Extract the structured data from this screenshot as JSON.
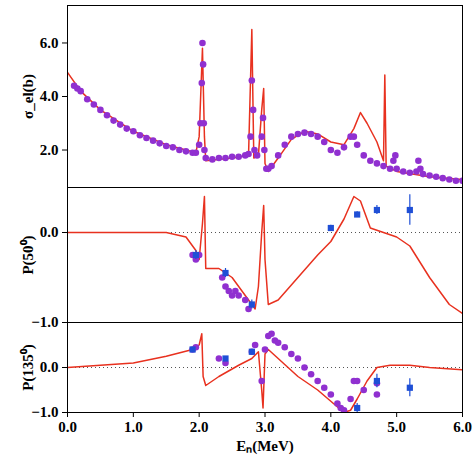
{
  "chart_data": [
    {
      "type": "line",
      "ylabel": "σ_el(b)",
      "tick_labels": "y",
      "xlim": [
        0,
        6
      ],
      "xticks": [
        0,
        1,
        2,
        3,
        4,
        5,
        6
      ],
      "ylim": [
        0.6,
        7.4
      ],
      "yticks": [
        2,
        4,
        6
      ],
      "series": [
        {
          "type": "line",
          "color": "#e8311f",
          "x": [
            0,
            0.2,
            0.5,
            1.0,
            1.5,
            1.8,
            1.95,
            2.0,
            2.05,
            2.08,
            2.1,
            2.5,
            2.75,
            2.8,
            2.83,
            2.9,
            2.95,
            2.98,
            3.0,
            3.05,
            3.2,
            3.4,
            3.6,
            3.8,
            4.0,
            4.2,
            4.35,
            4.45,
            4.55,
            4.7,
            4.8,
            4.82,
            4.84,
            5.0,
            5.5,
            6.0
          ],
          "values": [
            4.9,
            4.2,
            3.5,
            2.7,
            2.2,
            2.0,
            1.9,
            2.5,
            5.8,
            2.5,
            1.6,
            1.7,
            1.8,
            6.5,
            1.7,
            1.8,
            3.5,
            4.3,
            1.5,
            1.2,
            1.7,
            2.4,
            2.7,
            2.6,
            2.3,
            2.2,
            2.8,
            3.4,
            3.0,
            2.3,
            1.6,
            4.8,
            1.4,
            1.2,
            1.0,
            0.9
          ]
        },
        {
          "type": "scatter",
          "marker": "circle",
          "color": "#9030d0",
          "x": [
            0.1,
            0.15,
            0.2,
            0.3,
            0.4,
            0.5,
            0.6,
            0.7,
            0.8,
            0.9,
            1.0,
            1.1,
            1.2,
            1.3,
            1.4,
            1.5,
            1.6,
            1.7,
            1.8,
            1.9,
            1.95,
            2.0,
            2.02,
            2.04,
            2.05,
            2.06,
            2.07,
            2.08,
            2.1,
            2.2,
            2.3,
            2.4,
            2.5,
            2.6,
            2.7,
            2.75,
            2.78,
            2.8,
            2.82,
            2.84,
            2.88,
            2.95,
            2.97,
            2.99,
            3.02,
            3.05,
            3.1,
            3.2,
            3.3,
            3.4,
            3.5,
            3.6,
            3.7,
            3.8,
            3.9,
            4.0,
            4.1,
            4.2,
            4.3,
            4.35,
            4.4,
            4.5,
            4.6,
            4.7,
            4.8,
            4.9,
            4.95,
            4.98,
            5.0,
            5.1,
            5.2,
            5.3,
            5.33,
            5.36,
            5.4,
            5.5,
            5.6,
            5.7,
            5.8,
            5.9,
            6.0
          ],
          "values": [
            4.4,
            4.3,
            4.2,
            3.9,
            3.7,
            3.5,
            3.3,
            3.1,
            2.95,
            2.8,
            2.7,
            2.55,
            2.45,
            2.35,
            2.25,
            2.15,
            2.1,
            2.0,
            1.95,
            1.9,
            1.9,
            2.2,
            3.0,
            4.5,
            6.0,
            5.2,
            3.0,
            2.0,
            1.7,
            1.65,
            1.7,
            1.7,
            1.75,
            1.75,
            1.8,
            1.85,
            2.5,
            4.6,
            3.5,
            2.0,
            1.8,
            2.5,
            3.2,
            2.0,
            1.3,
            1.3,
            1.4,
            1.8,
            2.2,
            2.5,
            2.6,
            2.65,
            2.6,
            2.5,
            2.3,
            2.0,
            1.9,
            2.1,
            2.5,
            2.5,
            2.2,
            1.8,
            1.6,
            1.5,
            1.4,
            1.3,
            1.6,
            1.8,
            1.3,
            1.2,
            1.15,
            1.2,
            1.6,
            1.3,
            1.1,
            1.05,
            1.0,
            0.95,
            0.9,
            0.85,
            0.85
          ]
        }
      ]
    },
    {
      "type": "line",
      "ylabel": "P(50⁰)",
      "tick_labels": "y",
      "grid": true,
      "xlim": [
        0,
        6
      ],
      "xticks": [
        0,
        1,
        2,
        3,
        4,
        5,
        6
      ],
      "ylim": [
        -1,
        0.5
      ],
      "yticks": [
        -1,
        0
      ],
      "series": [
        {
          "type": "line",
          "color": "#e8311f",
          "x": [
            0,
            1.5,
            1.8,
            1.95,
            2.0,
            2.05,
            2.08,
            2.1,
            2.3,
            2.5,
            2.7,
            2.85,
            2.9,
            2.95,
            2.98,
            3.0,
            3.05,
            3.2,
            3.5,
            3.8,
            4.0,
            4.2,
            4.35,
            4.45,
            4.6,
            4.8,
            5.0,
            5.2,
            5.5,
            5.8,
            6.0
          ],
          "values": [
            0,
            0,
            -0.05,
            -0.2,
            -0.3,
            0.1,
            0.4,
            -0.4,
            -0.4,
            -0.5,
            -0.7,
            -0.85,
            -0.6,
            0.0,
            0.3,
            -0.3,
            -0.8,
            -0.75,
            -0.5,
            -0.25,
            -0.1,
            0.15,
            0.4,
            0.35,
            0.05,
            0.0,
            -0.05,
            -0.15,
            -0.5,
            -0.8,
            -0.9
          ]
        },
        {
          "type": "scatter",
          "marker": "circle",
          "color": "#9030d0",
          "x": [
            1.9,
            1.95,
            2.0,
            2.35,
            2.4,
            2.45,
            2.5,
            2.55,
            2.6,
            2.7,
            2.75
          ],
          "values": [
            -0.25,
            -0.3,
            -0.25,
            -0.5,
            -0.6,
            -0.65,
            -0.7,
            -0.65,
            -0.7,
            -0.75,
            -0.85
          ]
        },
        {
          "type": "scatter",
          "marker": "square",
          "color": "#1f4fd6",
          "x": [
            1.95,
            2.4,
            2.8,
            4.0,
            4.4,
            4.7,
            5.2
          ],
          "values": [
            -0.25,
            -0.45,
            -0.8,
            0.05,
            0.2,
            0.25,
            0.25
          ],
          "errors": [
            0.05,
            0.05,
            0.05,
            0.03,
            0.03,
            0.05,
            0.17
          ]
        }
      ]
    },
    {
      "type": "line",
      "ylabel": "P(135⁰)",
      "xlabel": "Eₙ(MeV)",
      "grid": true,
      "xlim": [
        0,
        6
      ],
      "xticks": [
        0,
        1,
        2,
        3,
        4,
        5,
        6
      ],
      "ylim": [
        -1,
        1
      ],
      "yticks": [
        -1,
        0
      ],
      "series": [
        {
          "type": "line",
          "color": "#e8311f",
          "x": [
            0,
            1.0,
            1.5,
            1.9,
            2.0,
            2.04,
            2.06,
            2.1,
            2.3,
            2.6,
            2.8,
            2.9,
            2.95,
            2.97,
            3.0,
            3.05,
            3.2,
            3.5,
            3.8,
            4.0,
            4.2,
            4.3,
            4.4,
            4.55,
            4.7,
            4.9,
            5.2,
            5.5,
            6.0
          ],
          "values": [
            0,
            0.1,
            0.25,
            0.4,
            0.5,
            0.75,
            -0.2,
            -0.4,
            -0.2,
            0.05,
            0.2,
            0.35,
            -0.5,
            -0.9,
            0.3,
            0.4,
            0.2,
            -0.2,
            -0.5,
            -0.75,
            -1.0,
            -0.95,
            -0.7,
            -0.3,
            0.0,
            0.05,
            0.05,
            0.0,
            -0.05
          ]
        },
        {
          "type": "scatter",
          "marker": "circle",
          "color": "#9030d0",
          "x": [
            1.9,
            1.95,
            2.3,
            2.4,
            2.8,
            2.85,
            2.95,
            3.0,
            3.05,
            3.1,
            3.15,
            3.2,
            3.3,
            3.4,
            3.5,
            3.6,
            3.7,
            3.8,
            3.9,
            4.0,
            4.1,
            4.15,
            4.2,
            4.3,
            4.35,
            4.4,
            4.5,
            4.7,
            4.7
          ],
          "values": [
            0.4,
            0.45,
            0.2,
            0.1,
            0.35,
            0.5,
            -0.3,
            0.4,
            0.7,
            0.75,
            0.6,
            0.55,
            0.45,
            0.3,
            0.2,
            0.0,
            -0.15,
            -0.3,
            -0.45,
            -0.6,
            -0.8,
            -0.9,
            -0.95,
            -0.7,
            -0.3,
            -0.3,
            -0.5,
            -0.6,
            -0.35
          ]
        },
        {
          "type": "scatter",
          "marker": "square",
          "color": "#1f4fd6",
          "x": [
            1.9,
            2.4,
            2.8,
            4.4,
            4.7,
            5.2
          ],
          "values": [
            0.4,
            0.2,
            0.35,
            -0.9,
            -0.3,
            -0.45
          ],
          "errors": [
            0.03,
            0.03,
            0.03,
            0.1,
            0.15,
            0.2
          ]
        }
      ]
    }
  ]
}
